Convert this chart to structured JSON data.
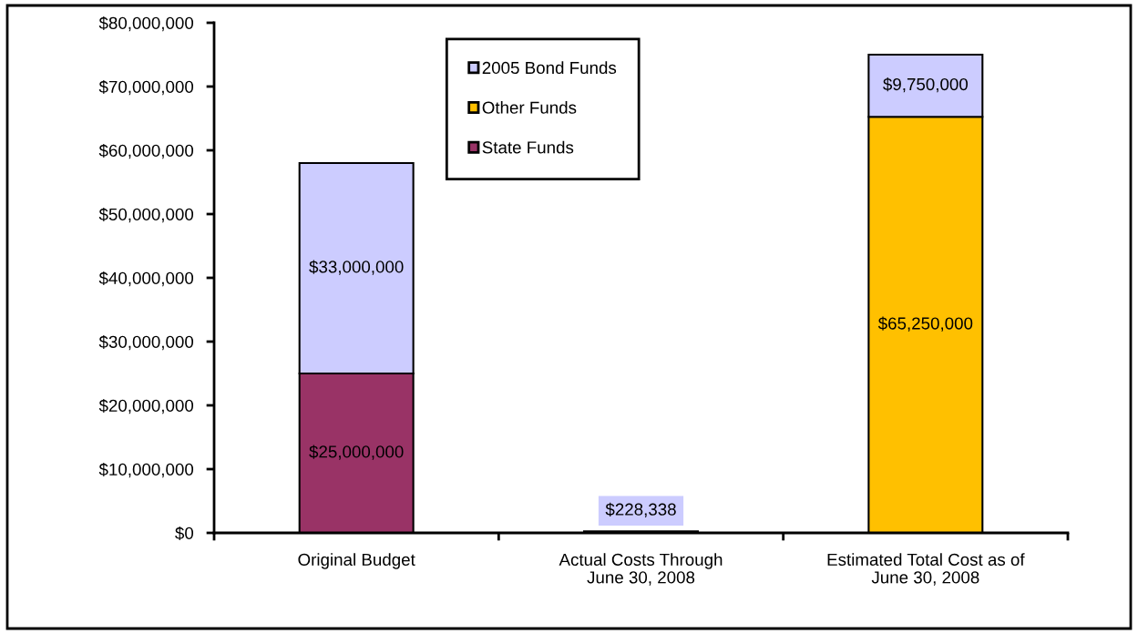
{
  "chart_data": {
    "type": "bar",
    "stacked": true,
    "categories": [
      "Original Budget",
      "Actual Costs Through\nJune 30, 2008",
      "Estimated Total Cost as of\nJune 30, 2008"
    ],
    "series": [
      {
        "name": "State Funds",
        "color": "#993366",
        "values": [
          25000000,
          null,
          null
        ],
        "value_labels": [
          "$25,000,000",
          null,
          null
        ]
      },
      {
        "name": "Other Funds",
        "color": "#ffc000",
        "values": [
          null,
          null,
          65250000
        ],
        "value_labels": [
          null,
          null,
          "$65,250,000"
        ]
      },
      {
        "name": "2005 Bond Funds",
        "color": "#ccccff",
        "values": [
          33000000,
          228338,
          9750000
        ],
        "value_labels": [
          "$33,000,000",
          "$228,338",
          "$9,750,000"
        ]
      }
    ],
    "ylim": [
      0,
      80000000
    ],
    "yticks": [
      {
        "value": 0,
        "label": "$0"
      },
      {
        "value": 10000000,
        "label": "$10,000,000"
      },
      {
        "value": 20000000,
        "label": "$20,000,000"
      },
      {
        "value": 30000000,
        "label": "$30,000,000"
      },
      {
        "value": 40000000,
        "label": "$40,000,000"
      },
      {
        "value": 50000000,
        "label": "$50,000,000"
      },
      {
        "value": 60000000,
        "label": "$60,000,000"
      },
      {
        "value": 70000000,
        "label": "$70,000,000"
      },
      {
        "value": 80000000,
        "label": "$80,000,000"
      }
    ],
    "grid": false,
    "legend": "top"
  }
}
